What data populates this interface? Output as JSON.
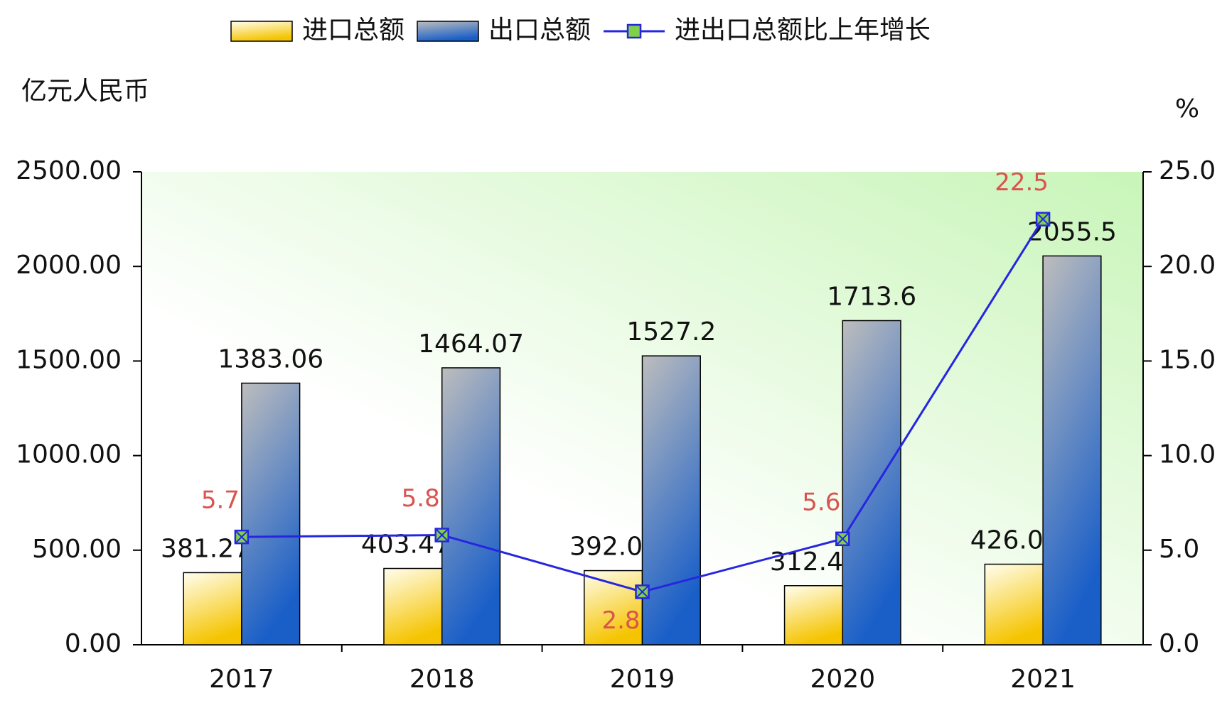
{
  "chart_data": {
    "type": "bar_line",
    "y_label": "亿元人民币",
    "y2_label": "%",
    "categories": [
      "2017",
      "2018",
      "2019",
      "2020",
      "2021"
    ],
    "series": [
      {
        "name": "进口总额",
        "type": "bar",
        "color": "#f5c400",
        "values": [
          381.27,
          403.47,
          392.0,
          312.4,
          426.0
        ],
        "value_labels": [
          "381.27",
          "403.47",
          "392.0",
          "312.4",
          "426.0"
        ]
      },
      {
        "name": "出口总额",
        "type": "bar",
        "color": "#1a5fc8",
        "values": [
          1383.06,
          1464.07,
          1527.2,
          1713.6,
          2055.5
        ]
      },
      {
        "name": "进出口总额比上年增长",
        "type": "line",
        "axis": "y2",
        "color": "#2626e0",
        "values": [
          5.7,
          5.8,
          2.8,
          5.6,
          22.5
        ]
      }
    ],
    "ylim": [
      0,
      2500
    ],
    "yticks": [
      {
        "value": 0,
        "label": "0.00"
      },
      {
        "value": 500,
        "label": "500.00"
      },
      {
        "value": 1000,
        "label": "1000.00"
      },
      {
        "value": 1500,
        "label": "1500.00"
      },
      {
        "value": 2000,
        "label": "2000.00"
      },
      {
        "value": 2500,
        "label": "2500.00"
      }
    ],
    "y2lim": [
      0,
      25
    ],
    "y2ticks": [
      {
        "value": 0,
        "label": "0.0"
      },
      {
        "value": 5,
        "label": "5.0"
      },
      {
        "value": 10,
        "label": "10.0"
      },
      {
        "value": 15,
        "label": "15.0"
      },
      {
        "value": 20,
        "label": "20.0"
      },
      {
        "value": 25,
        "label": "25.0"
      }
    ],
    "legend_position": "top"
  }
}
